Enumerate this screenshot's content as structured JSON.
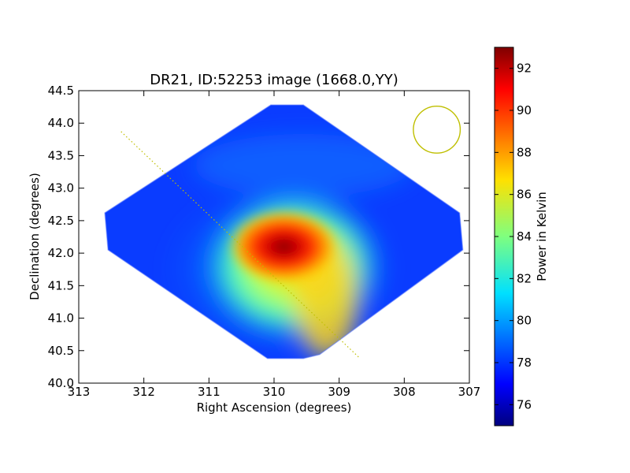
{
  "chart_data": {
    "type": "heatmap",
    "title": "DR21, ID:52253 image (1668.0,YY)",
    "xlabel": "Right Ascension (degrees)",
    "ylabel": "Declination (degrees)",
    "xlim": [
      313,
      307
    ],
    "ylim": [
      40.0,
      44.5
    ],
    "x_ticks": [
      "313",
      "312",
      "311",
      "310",
      "309",
      "308",
      "307"
    ],
    "y_ticks": [
      "40.0",
      "40.5",
      "41.0",
      "41.5",
      "42.0",
      "42.5",
      "43.0",
      "43.5",
      "44.0",
      "44.5"
    ],
    "grid": false,
    "colorscale": "jet",
    "colorbar": {
      "label": "Power in Kelvin",
      "range": [
        75,
        93
      ],
      "ticks": [
        "76",
        "78",
        "80",
        "82",
        "84",
        "86",
        "88",
        "90",
        "92"
      ]
    },
    "field_outline": [
      [
        310.05,
        44.28
      ],
      [
        309.55,
        44.28
      ],
      [
        307.15,
        42.62
      ],
      [
        307.1,
        42.05
      ],
      [
        309.3,
        40.44
      ],
      [
        309.55,
        40.38
      ],
      [
        310.1,
        40.38
      ],
      [
        312.55,
        42.05
      ],
      [
        312.6,
        42.62
      ]
    ],
    "peak": {
      "ra": 310.05,
      "dec": 42.05,
      "value": 93
    },
    "cut_line": {
      "from": [
        312.35,
        43.87
      ],
      "to": [
        308.7,
        40.4
      ],
      "color": "#bfbf00",
      "style": "dotted"
    },
    "beam_circle": {
      "ra": 307.5,
      "dec": 43.9,
      "radius_deg": 0.36,
      "color": "#bfbf00"
    }
  }
}
